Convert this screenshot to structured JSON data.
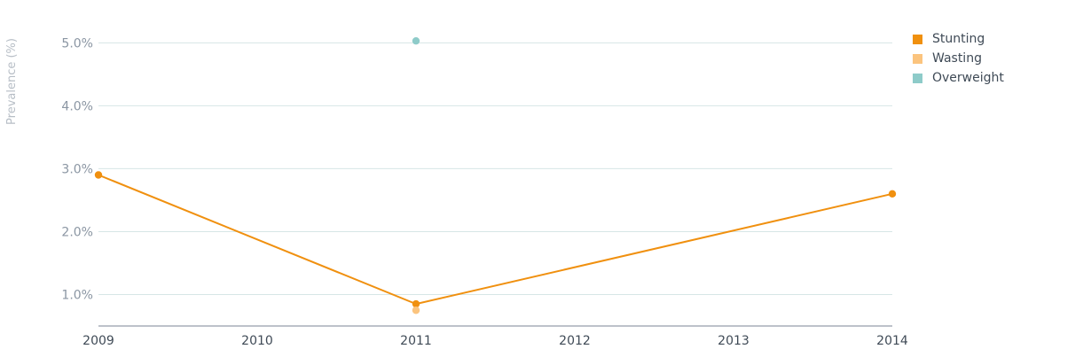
{
  "chart_data": {
    "type": "line",
    "xlabel": "",
    "ylabel": "Prevalence (%)",
    "x": [
      "2009",
      "2010",
      "2011",
      "2012",
      "2013",
      "2014"
    ],
    "xlim": [
      2009,
      2014
    ],
    "ylim": [
      0.5,
      5.3
    ],
    "yticks": [
      1.0,
      2.0,
      3.0,
      4.0,
      5.0
    ],
    "ytick_labels": [
      "1.0%",
      "2.0%",
      "3.0%",
      "4.0%",
      "5.0%"
    ],
    "grid": true,
    "legend_position": "top-right",
    "series": [
      {
        "name": "Stunting",
        "color": "#f0900f",
        "points": [
          {
            "x": 2009,
            "y": 2.9
          },
          {
            "x": 2011,
            "y": 0.85
          },
          {
            "x": 2014,
            "y": 2.6
          }
        ]
      },
      {
        "name": "Wasting",
        "color": "#fbc47e",
        "points": [
          {
            "x": 2011,
            "y": 0.75
          }
        ]
      },
      {
        "name": "Overweight",
        "color": "#8ecbc9",
        "points": [
          {
            "x": 2011,
            "y": 5.03
          }
        ]
      }
    ]
  }
}
